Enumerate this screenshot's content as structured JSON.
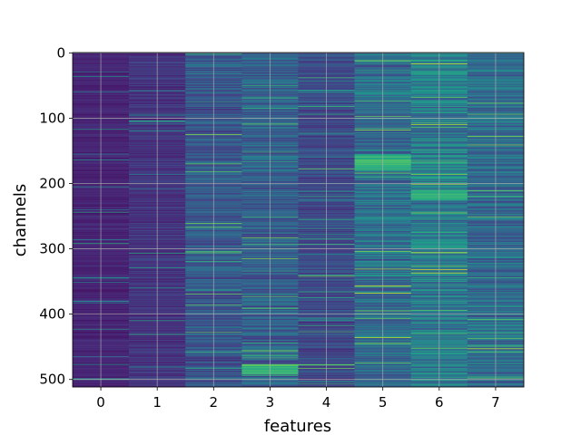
{
  "chart_data": {
    "type": "heatmap",
    "title": "",
    "xlabel": "features",
    "ylabel": "channels",
    "x_ticks": [
      "0",
      "1",
      "2",
      "3",
      "4",
      "5",
      "6",
      "7"
    ],
    "y_ticks": [
      "0",
      "100",
      "200",
      "300",
      "400",
      "500"
    ],
    "n_features": 8,
    "n_channels": 512,
    "xlim": [
      -0.5,
      7.5
    ],
    "ylim": [
      511.5,
      -0.5
    ],
    "colormap": "viridis",
    "grid": true,
    "column_mean_intensity": [
      0.1,
      0.15,
      0.27,
      0.3,
      0.22,
      0.36,
      0.42,
      0.35
    ],
    "notable_bright_bands": [
      {
        "feature": 6,
        "channels": [
          210,
          225
        ]
      },
      {
        "feature": 5,
        "channels": [
          155,
          180
        ]
      },
      {
        "feature": 3,
        "channels": [
          478,
          492
        ]
      }
    ]
  }
}
